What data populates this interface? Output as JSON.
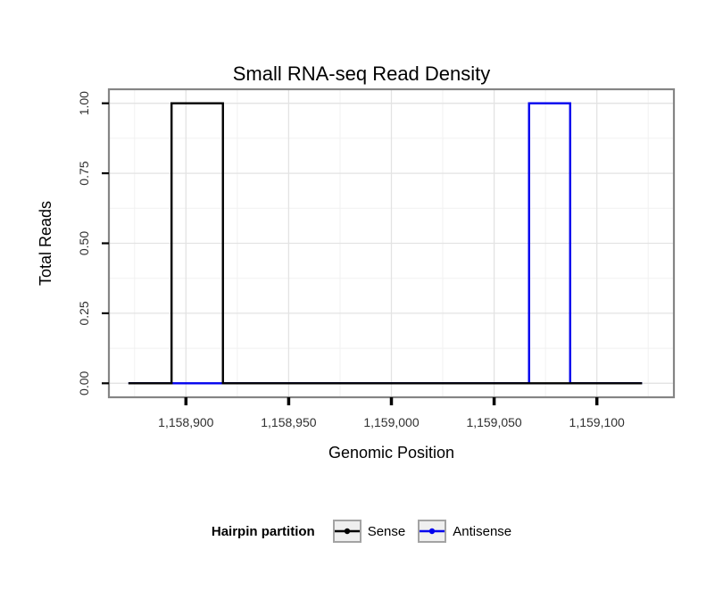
{
  "chart_data": {
    "type": "line",
    "title": "Small RNA-seq Read Density",
    "xlabel": "Genomic Position",
    "ylabel": "Total Reads",
    "legend_title": "Hairpin partition",
    "legend_position": "bottom",
    "grid": true,
    "xlim": [
      1158875,
      1159125
    ],
    "ylim": [
      0,
      1
    ],
    "x_ticks": [
      1158900,
      1158950,
      1159000,
      1159050,
      1159100
    ],
    "x_tick_labels": [
      "1,158,900",
      "1,158,950",
      "1,159,000",
      "1,159,050",
      "1,159,100"
    ],
    "y_ticks": [
      0,
      0.25,
      0.5,
      0.75,
      1
    ],
    "y_tick_labels": [
      "0.00",
      "0.25",
      "0.50",
      "0.75",
      "1.00"
    ],
    "series": [
      {
        "name": "Sense",
        "color": "#000000",
        "shape": "step",
        "points": [
          [
            1158872,
            0
          ],
          [
            1158893,
            0
          ],
          [
            1158893,
            1
          ],
          [
            1158918,
            1
          ],
          [
            1158918,
            0
          ],
          [
            1159122,
            0
          ]
        ]
      },
      {
        "name": "Antisense",
        "color": "#0000ee",
        "shape": "step",
        "points": [
          [
            1158872,
            0
          ],
          [
            1159067,
            0
          ],
          [
            1159067,
            1
          ],
          [
            1159087,
            1
          ],
          [
            1159087,
            0
          ],
          [
            1159122,
            0
          ]
        ]
      }
    ],
    "colors": {
      "panel_border": "#858585",
      "grid_major": "#e3e3e3",
      "grid_minor": "#f1f1f1",
      "tick_label": "#303030",
      "axis_tick": "#000000"
    }
  }
}
